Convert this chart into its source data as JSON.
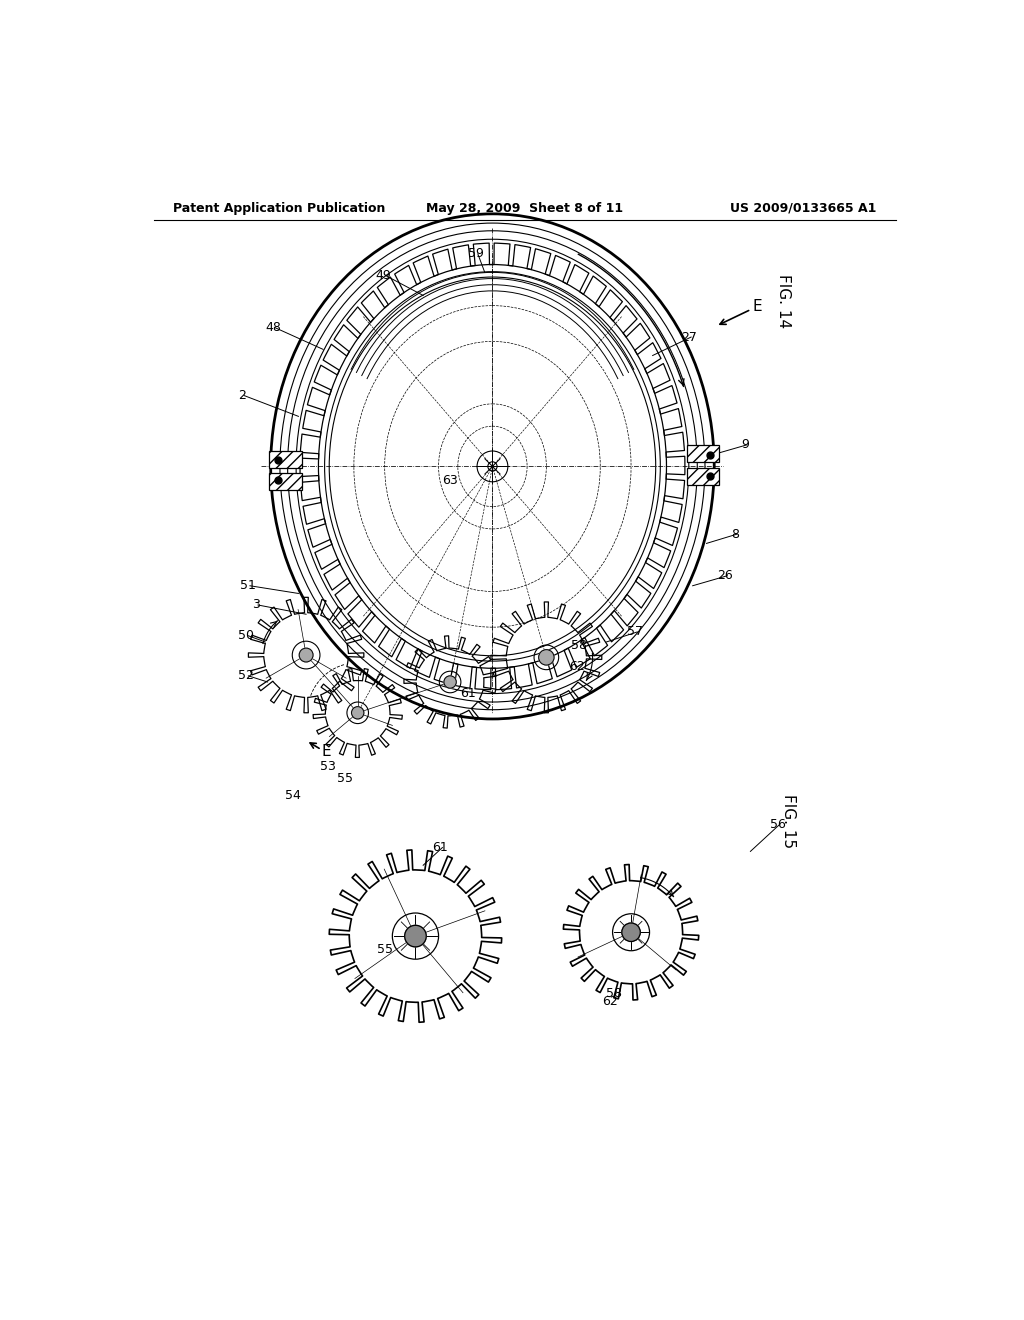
{
  "header_left": "Patent Application Publication",
  "header_mid": "May 28, 2009  Sheet 8 of 11",
  "header_right": "US 2009/0133665 A1",
  "bg_color": "#ffffff",
  "lc": "#000000"
}
